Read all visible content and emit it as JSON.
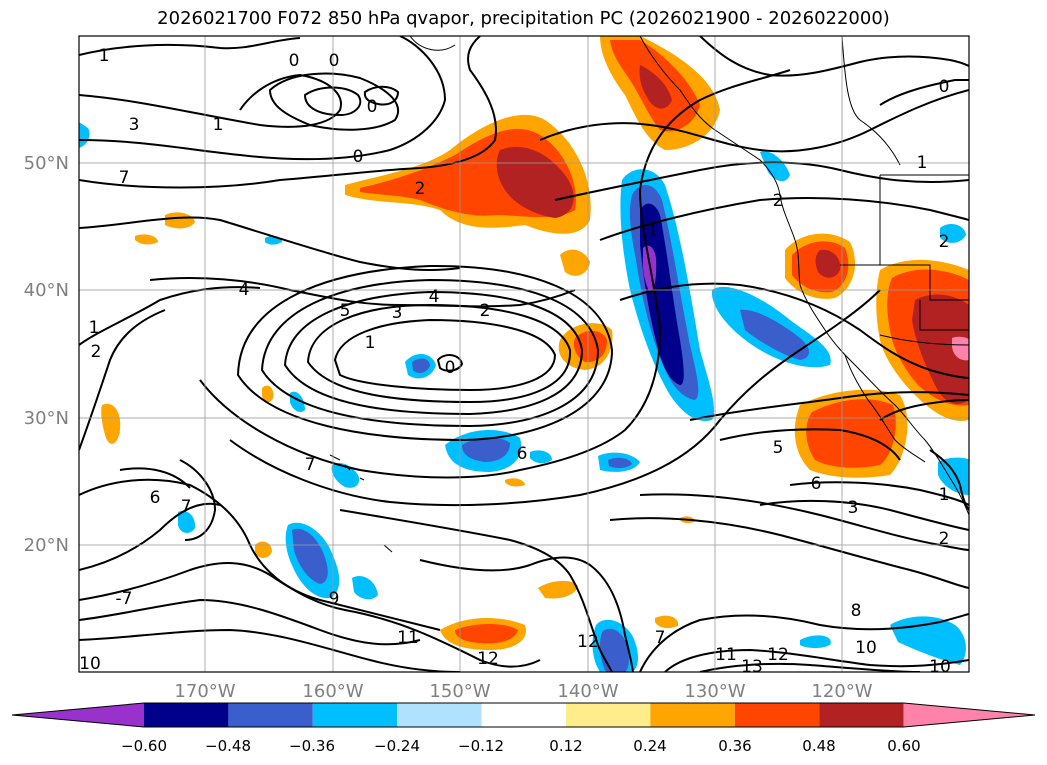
{
  "title": "2026021700 F072 850 hPa qvapor, precipitation PC (2026021900 - 2026022000)",
  "map": {
    "lat_labels": [
      "50°N",
      "40°N",
      "30°N",
      "20°N"
    ],
    "lon_labels": [
      "170°W",
      "160°W",
      "150°W",
      "140°W",
      "130°W",
      "120°W"
    ],
    "label_color": "#808080",
    "contour_labels": [
      "1",
      "0",
      "0",
      "0",
      "0",
      "3",
      "1",
      "2",
      "7",
      "0",
      "4",
      "5",
      "3",
      "4",
      "2",
      "1",
      "0",
      "1",
      "2",
      "1",
      "7",
      "6",
      "6",
      "7",
      "9",
      "11",
      "12",
      "12",
      "7",
      "11",
      "13",
      "12",
      "10",
      "10",
      "8",
      "3",
      "2",
      "1",
      "5",
      "6",
      "2",
      "1",
      "2",
      "-7"
    ]
  },
  "colorbar": {
    "tick_labels": [
      "−0.60",
      "−0.48",
      "−0.36",
      "−0.24",
      "−0.12",
      "0.12",
      "0.24",
      "0.36",
      "0.48",
      "0.60"
    ],
    "colors": [
      "#9932cc",
      "#00008b",
      "#3a5fcd",
      "#00bfff",
      "#b0e2ff",
      "#ffffff",
      "#ffec8b",
      "#ffa500",
      "#ff4500",
      "#b22222",
      "#ff82ab"
    ]
  }
}
